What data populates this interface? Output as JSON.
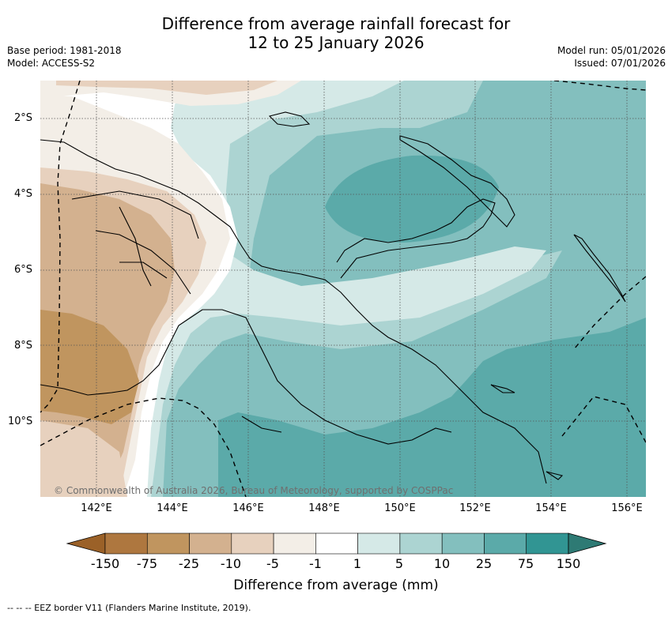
{
  "title_line1": "Difference from average rainfall forecast for",
  "title_line2": "12 to 25 January 2026",
  "base_period": "Base period: 1981-2018",
  "model": "Model: ACCESS-S2",
  "model_run": "Model run: 05/01/2026",
  "issued": "Issued: 07/01/2026",
  "copyright": "© Commonwealth of Australia 2026, Bureau of Meteorology, supported by COSPPac",
  "lat_ticks": [
    "2°S",
    "4°S",
    "6°S",
    "8°S",
    "10°S"
  ],
  "lon_ticks": [
    "142°E",
    "144°E",
    "146°E",
    "148°E",
    "150°E",
    "152°E",
    "154°E",
    "156°E"
  ],
  "colorbar": {
    "title": "Difference from average (mm)",
    "ticks": [
      "-150",
      "-75",
      "-25",
      "-10",
      "-5",
      "-1",
      "1",
      "5",
      "10",
      "25",
      "75",
      "150"
    ],
    "low_color": "#9b6128",
    "high_color": "#2e7a74",
    "bins": [
      "#ae773f",
      "#c0955f",
      "#d3b18f",
      "#e7d1be",
      "#f3eee7",
      "#ffffff",
      "#d5e9e7",
      "#acd4d2",
      "#83bfbe",
      "#5baaa9",
      "#319593"
    ]
  },
  "footnote": "-- -- -- EEZ border V11 (Flanders Marine Institute, 2019)."
}
